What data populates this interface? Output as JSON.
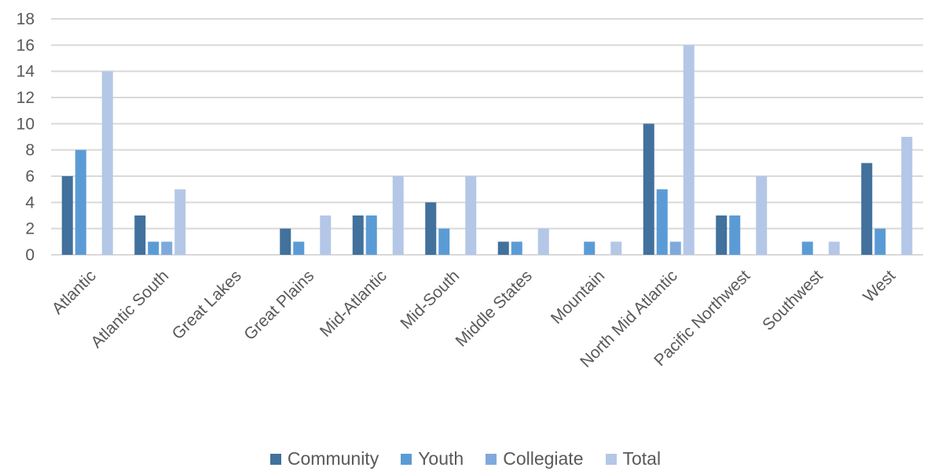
{
  "chart_data": {
    "type": "bar",
    "categories": [
      "Atlantic",
      "Atlantic South",
      "Great Lakes",
      "Great Plains",
      "Mid-Atlantic",
      "Mid-South",
      "Middle States",
      "Mountain",
      "North Mid Atlantic",
      "Pacific Northwest",
      "Southwest",
      "West"
    ],
    "series": [
      {
        "name": "Community",
        "color": "#41719c",
        "values": [
          6,
          3,
          0,
          2,
          3,
          4,
          1,
          0,
          10,
          3,
          0,
          7
        ]
      },
      {
        "name": "Youth",
        "color": "#5b9bd5",
        "values": [
          8,
          1,
          0,
          1,
          3,
          2,
          1,
          1,
          5,
          3,
          1,
          2
        ]
      },
      {
        "name": "Collegiate",
        "color": "#7fa9dc",
        "values": [
          0,
          1,
          0,
          0,
          0,
          0,
          0,
          0,
          1,
          0,
          0,
          0
        ]
      },
      {
        "name": "Total",
        "color": "#b4c7e7",
        "values": [
          14,
          5,
          0,
          3,
          6,
          6,
          2,
          1,
          16,
          6,
          1,
          9
        ]
      }
    ],
    "yticks": [
      "0",
      "2",
      "4",
      "6",
      "8",
      "10",
      "12",
      "14",
      "16",
      "18"
    ],
    "ylim": [
      0,
      18
    ],
    "grid": true,
    "legend_position": "bottom",
    "title": "",
    "xlabel": "",
    "ylabel": ""
  }
}
